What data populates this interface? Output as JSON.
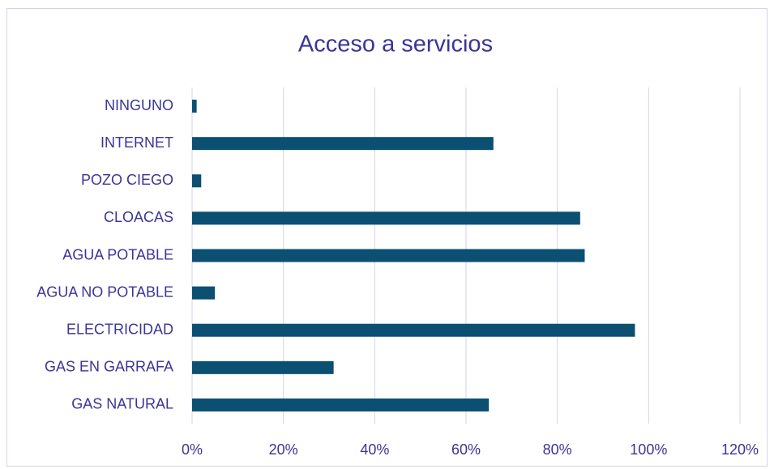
{
  "chart_data": {
    "type": "bar",
    "orientation": "horizontal",
    "title": "Acceso a servicios",
    "categories": [
      "NINGUNO",
      "INTERNET",
      "POZO CIEGO",
      "CLOACAS",
      "AGUA POTABLE",
      "AGUA NO POTABLE",
      "ELECTRICIDAD",
      "GAS EN GARRAFA",
      "GAS NATURAL"
    ],
    "values": [
      1,
      66,
      2,
      85,
      86,
      5,
      97,
      31,
      65
    ],
    "color": "#0b4f72",
    "xlim": [
      0,
      120
    ],
    "xticks": [
      {
        "value": 0,
        "label": "0%"
      },
      {
        "value": 20,
        "label": "20%"
      },
      {
        "value": 40,
        "label": "40%"
      },
      {
        "value": 60,
        "label": "60%"
      },
      {
        "value": 80,
        "label": "80%"
      },
      {
        "value": 100,
        "label": "100%"
      },
      {
        "value": 120,
        "label": "120%"
      }
    ],
    "grid": true
  }
}
